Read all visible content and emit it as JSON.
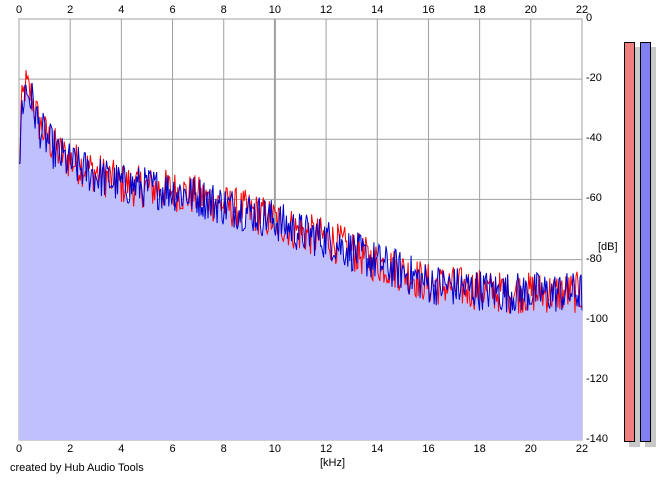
{
  "credit": "created by Hub Audio Tools",
  "chart_data": {
    "type": "area",
    "xlabel": "[kHz]",
    "ylabel": "[dB]",
    "xlim": [
      0,
      22
    ],
    "ylim": [
      -140,
      0
    ],
    "x_ticks": [
      "0",
      "2",
      "4",
      "6",
      "8",
      "10",
      "12",
      "14",
      "16",
      "18",
      "20",
      "22"
    ],
    "y_ticks": [
      "0",
      "-20",
      "-40",
      "-60",
      "-80",
      "-100",
      "-120",
      "-140"
    ],
    "grid": true,
    "series": [
      {
        "color": "#ff0000",
        "x": [
          0,
          0.25,
          0.5,
          0.75,
          1,
          1.5,
          2,
          2.5,
          3,
          4,
          5,
          6,
          7,
          8,
          9,
          10,
          11,
          12,
          13,
          14,
          15,
          16,
          17,
          18,
          19,
          20,
          21,
          22
        ],
        "y": [
          -35,
          -22,
          -26,
          -34,
          -38,
          -44,
          -47,
          -49,
          -51,
          -55,
          -56,
          -57,
          -59,
          -62,
          -64,
          -67,
          -71,
          -73,
          -77,
          -81,
          -84,
          -88,
          -89,
          -90,
          -91,
          -91,
          -91,
          -91
        ]
      },
      {
        "color": "#0000cc",
        "x": [
          0,
          0.25,
          0.5,
          0.75,
          1,
          1.5,
          2,
          2.5,
          3,
          4,
          5,
          6,
          7,
          8,
          9,
          10,
          11,
          12,
          13,
          14,
          15,
          16,
          17,
          18,
          19,
          20,
          21,
          22
        ],
        "y": [
          -36,
          -23,
          -27,
          -35,
          -39,
          -45,
          -48,
          -50,
          -52,
          -55,
          -56,
          -57,
          -59,
          -62,
          -64,
          -67,
          -71,
          -73,
          -77,
          -81,
          -84,
          -88,
          -89,
          -90,
          -91,
          -91,
          -91,
          -91
        ]
      }
    ]
  },
  "meters": {
    "left_color": "#f08080",
    "right_color": "#8080f0"
  },
  "colors": {
    "fill": "#c0c0ff",
    "grid": "#a0a0a0",
    "axis": "#7a7a7a"
  }
}
